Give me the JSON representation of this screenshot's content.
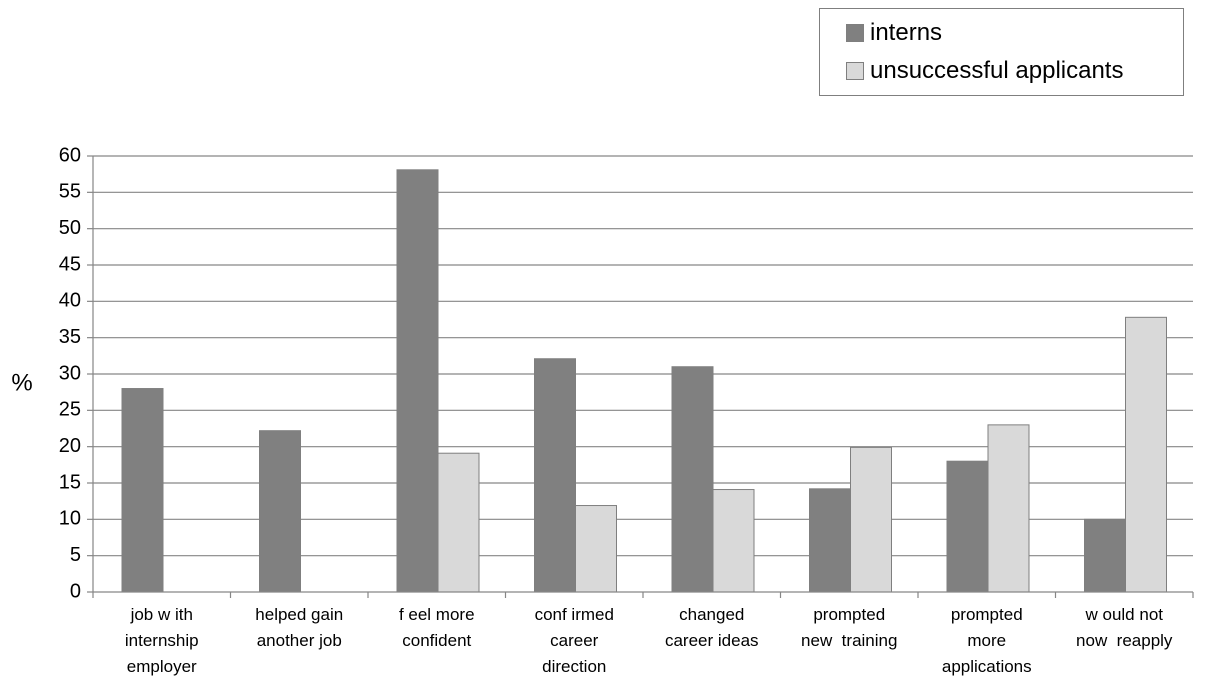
{
  "chart_data": {
    "type": "bar",
    "ylabel": "%",
    "ylim": [
      0,
      60
    ],
    "ytick_step": 5,
    "grid": true,
    "legend_position": "top-right",
    "categories": [
      [
        "job w ith",
        "internship",
        "employer"
      ],
      [
        "helped gain",
        "another job"
      ],
      [
        "f eel more",
        "confident"
      ],
      [
        "conf irmed",
        "career",
        "direction"
      ],
      [
        "changed",
        "career ideas"
      ],
      [
        "prompted",
        "new  training"
      ],
      [
        "prompted",
        "more",
        "applications"
      ],
      [
        "w ould not",
        "now  reapply"
      ]
    ],
    "series": [
      {
        "name": "interns",
        "color": "#808080",
        "values": [
          28,
          22.2,
          58.1,
          32.1,
          31,
          14.2,
          18,
          10
        ]
      },
      {
        "name": "unsuccessful applicants",
        "color": "#d9d9d9",
        "values": [
          0,
          0,
          19.1,
          11.9,
          14.1,
          19.9,
          23,
          37.8
        ]
      }
    ]
  }
}
